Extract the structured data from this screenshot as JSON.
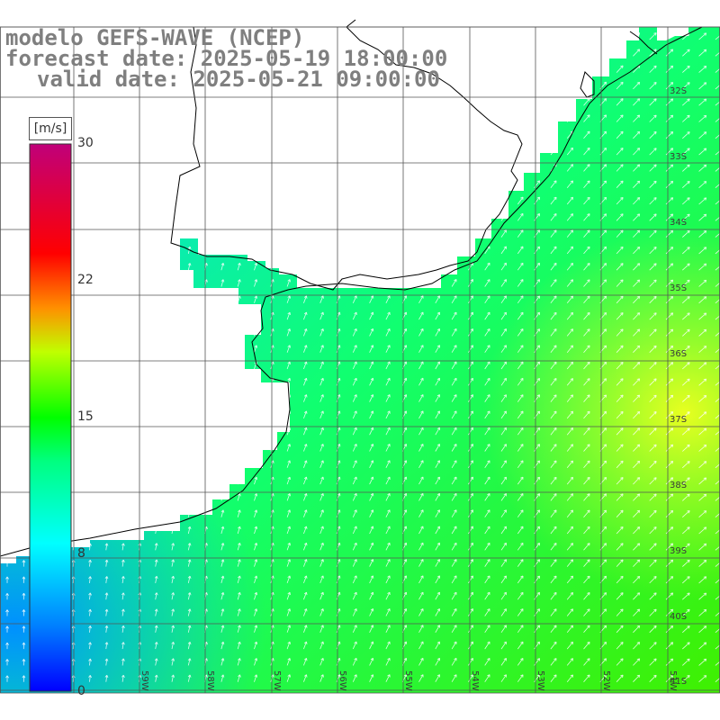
{
  "titles": {
    "model": "modelo GEFS-WAVE (NCEP)",
    "forecast": "forecast date: 2025-05-19 18:00:00",
    "valid": "valid date: 2025-05-21 09:00:00"
  },
  "colorbar": {
    "unit": "[m/s]",
    "ticks": [
      "30",
      "22",
      "15",
      "8",
      "0"
    ],
    "gradient_stops": [
      "#0000ff",
      "#0090ff",
      "#00ffff",
      "#00ff40",
      "#00ff00",
      "#ffff00",
      "#ff8000",
      "#ff0000",
      "#c0007a"
    ]
  },
  "lat_labels": [
    "32S",
    "33S",
    "34S",
    "35S",
    "36S",
    "37S",
    "38S",
    "39S",
    "40S",
    "41S"
  ],
  "lon_labels": [
    "59W",
    "58W",
    "57W",
    "56W",
    "55W",
    "54W",
    "53W",
    "52W",
    "51W"
  ],
  "colors": {
    "land": "#ffffff",
    "coast": "#000000",
    "grid": "#555555",
    "title": "#7f7f7f"
  }
}
